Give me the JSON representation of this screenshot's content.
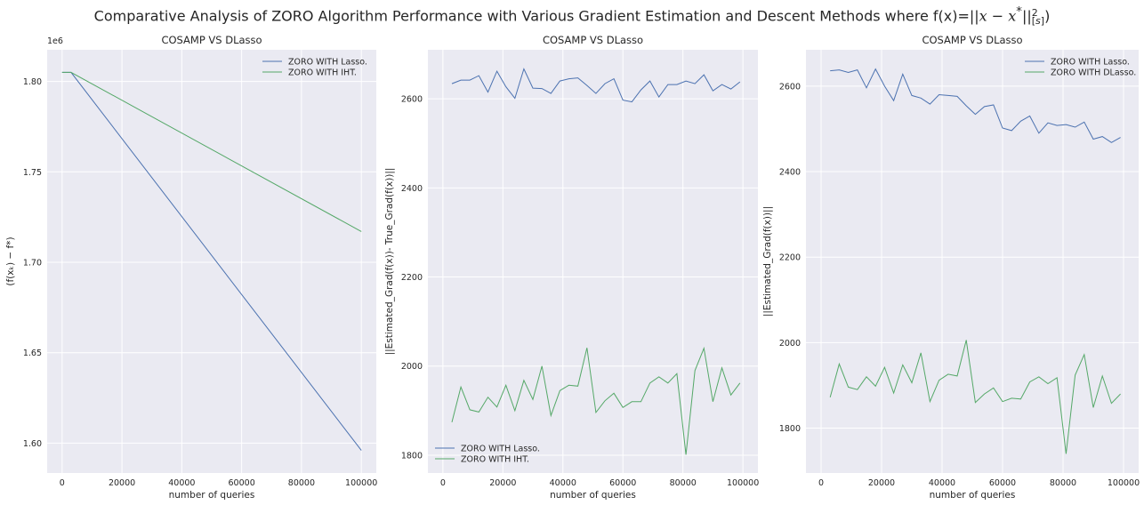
{
  "suptitle": "Comparative Analysis of ZORO Algorithm Performance with Various Gradient Estimation and Descent Methods where f(x)=||x − x*||²[s])",
  "chart_data": [
    {
      "type": "line",
      "title": "COSAMP VS DLasso",
      "xlabel": "number of queries",
      "ylabel": "(f(xₖ) − f*)",
      "y_offset_label": "1e6",
      "xlim": [
        -5000,
        105000
      ],
      "ylim": [
        1.5835,
        1.8175
      ],
      "xticks": [
        0,
        20000,
        40000,
        60000,
        80000,
        100000
      ],
      "yticks": [
        1.6,
        1.65,
        1.7,
        1.75,
        1.8
      ],
      "ytick_labels": [
        "1.60",
        "1.65",
        "1.70",
        "1.75",
        "1.80"
      ],
      "legend_loc": "upper right",
      "series": [
        {
          "name": "ZORO WITH Lasso.",
          "color": "#4c72b0",
          "x": [
            0,
            3000,
            100000
          ],
          "y": [
            1.805,
            1.805,
            1.596
          ]
        },
        {
          "name": "ZORO WITH IHT.",
          "color": "#55a868",
          "x": [
            0,
            3000,
            100000
          ],
          "y": [
            1.805,
            1.805,
            1.717
          ]
        }
      ]
    },
    {
      "type": "line",
      "title": "COSAMP VS DLasso",
      "xlabel": "number of queries",
      "ylabel": "||Estimated_Grad(f(x))- True_Grad(f(x))||",
      "xlim": [
        -5000,
        105000
      ],
      "ylim": [
        1760,
        2710
      ],
      "xticks": [
        0,
        20000,
        40000,
        60000,
        80000,
        100000
      ],
      "yticks": [
        1800,
        2000,
        2200,
        2400,
        2600
      ],
      "ytick_labels": [
        "1800",
        "2000",
        "2200",
        "2400",
        "2600"
      ],
      "legend_loc": "lower left",
      "series": [
        {
          "name": "ZORO WITH Lasso.",
          "color": "#4c72b0",
          "x": [
            3000,
            6000,
            9000,
            12000,
            15000,
            18000,
            21000,
            24000,
            27000,
            30000,
            33000,
            36000,
            39000,
            42000,
            45000,
            48000,
            51000,
            54000,
            57000,
            60000,
            63000,
            66000,
            69000,
            72000,
            75000,
            78000,
            81000,
            84000,
            87000,
            90000,
            93000,
            96000,
            99000
          ],
          "y": [
            2634,
            2642,
            2642,
            2652,
            2615,
            2662,
            2627,
            2601,
            2667,
            2624,
            2623,
            2612,
            2640,
            2645,
            2647,
            2630,
            2612,
            2634,
            2645,
            2597,
            2593,
            2620,
            2640,
            2604,
            2632,
            2632,
            2640,
            2634,
            2654,
            2618,
            2632,
            2622,
            2638
          ]
        },
        {
          "name": "ZORO WITH IHT.",
          "color": "#55a868",
          "x": [
            3000,
            6000,
            9000,
            12000,
            15000,
            18000,
            21000,
            24000,
            27000,
            30000,
            33000,
            36000,
            39000,
            42000,
            45000,
            48000,
            51000,
            54000,
            57000,
            60000,
            63000,
            66000,
            69000,
            72000,
            75000,
            78000,
            81000,
            84000,
            87000,
            90000,
            93000,
            96000,
            99000
          ],
          "y": [
            1874,
            1953,
            1902,
            1897,
            1930,
            1908,
            1957,
            1900,
            1968,
            1925,
            2000,
            1889,
            1945,
            1957,
            1955,
            2041,
            1896,
            1922,
            1939,
            1907,
            1920,
            1920,
            1962,
            1976,
            1962,
            1983,
            1801,
            1990,
            2040,
            1920,
            1996,
            1935,
            1962
          ]
        }
      ]
    },
    {
      "type": "line",
      "title": "COSAMP VS DLasso",
      "xlabel": "number of queries",
      "ylabel": "||Estimated_Grad(f(x))||",
      "xlim": [
        -5000,
        105000
      ],
      "ylim": [
        1695,
        2685
      ],
      "xticks": [
        0,
        20000,
        40000,
        60000,
        80000,
        100000
      ],
      "yticks": [
        1800,
        2000,
        2200,
        2400,
        2600
      ],
      "ytick_labels": [
        "1800",
        "2000",
        "2200",
        "2400",
        "2600"
      ],
      "legend_loc": "upper right",
      "series": [
        {
          "name": "ZORO WITH Lasso.",
          "color": "#4c72b0",
          "x": [
            3000,
            6000,
            9000,
            12000,
            15000,
            18000,
            21000,
            24000,
            27000,
            30000,
            33000,
            36000,
            39000,
            42000,
            45000,
            48000,
            51000,
            54000,
            57000,
            60000,
            63000,
            66000,
            69000,
            72000,
            75000,
            78000,
            81000,
            84000,
            87000,
            90000,
            93000,
            96000,
            99000
          ],
          "y": [
            2636,
            2638,
            2632,
            2638,
            2596,
            2640,
            2600,
            2566,
            2628,
            2578,
            2572,
            2558,
            2580,
            2578,
            2576,
            2554,
            2534,
            2552,
            2556,
            2502,
            2496,
            2518,
            2530,
            2490,
            2514,
            2508,
            2510,
            2504,
            2516,
            2476,
            2482,
            2468,
            2480
          ]
        },
        {
          "name": "ZORO WITH DLasso.",
          "color": "#55a868",
          "x": [
            3000,
            6000,
            9000,
            12000,
            15000,
            18000,
            21000,
            24000,
            27000,
            30000,
            33000,
            36000,
            39000,
            42000,
            45000,
            48000,
            51000,
            54000,
            57000,
            60000,
            63000,
            66000,
            69000,
            72000,
            75000,
            78000,
            81000,
            84000,
            87000,
            90000,
            93000,
            96000,
            99000
          ],
          "y": [
            1872,
            1950,
            1896,
            1890,
            1920,
            1898,
            1942,
            1882,
            1948,
            1906,
            1976,
            1862,
            1912,
            1926,
            1922,
            2006,
            1860,
            1880,
            1894,
            1862,
            1870,
            1868,
            1908,
            1920,
            1904,
            1918,
            1740,
            1924,
            1972,
            1848,
            1922,
            1858,
            1880
          ]
        }
      ]
    }
  ]
}
